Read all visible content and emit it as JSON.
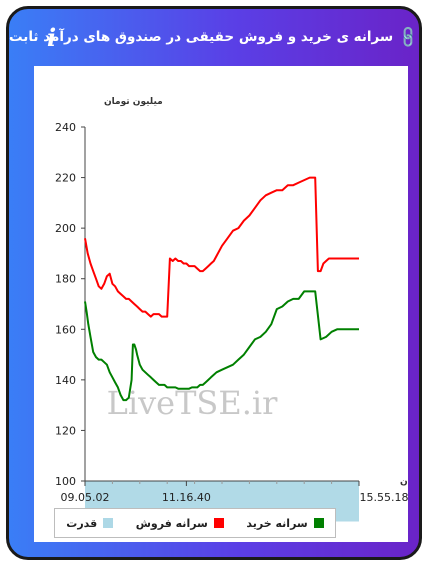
{
  "header": {
    "title": "سرانه ی خرید و فروش حقیقی در صندوق های درآمد ثابت",
    "link_icon": "link-icon",
    "info_icon": "info-icon",
    "info_glyph": "i"
  },
  "watermark": "LiveTSE.ir",
  "chart_data": {
    "type": "line",
    "ylabel": "میلیون تومان",
    "xlabel": "زمان",
    "ylim": [
      100,
      240
    ],
    "yticks": [
      100,
      120,
      140,
      160,
      180,
      200,
      220,
      240
    ],
    "xtick_labels": [
      "09.05.02",
      "11.16.40",
      "15.55.18"
    ],
    "grid": false,
    "legend_position": "bottom",
    "series": [
      {
        "name": "سرانه خرید",
        "color": "#008000",
        "x": [
          0,
          0.6,
          1.2,
          2,
          3,
          4,
          5,
          6,
          7,
          8,
          9,
          10,
          11,
          12,
          13,
          14,
          15,
          16,
          17,
          17.5,
          18,
          18.6,
          19,
          20,
          21,
          22,
          23,
          24,
          25,
          26,
          27,
          28,
          29,
          30,
          31,
          32,
          33,
          34,
          35,
          36,
          37,
          38,
          39,
          40,
          41,
          42,
          43,
          44,
          45,
          46,
          47,
          48,
          50,
          52,
          54,
          56,
          58,
          60,
          62,
          64,
          66,
          68,
          70,
          72,
          74,
          76,
          78,
          80,
          82,
          84,
          86,
          88,
          90,
          92,
          94,
          96,
          98,
          99,
          99.5,
          100
        ],
        "y": [
          171,
          167,
          162,
          157,
          151,
          149,
          148,
          148,
          147,
          146,
          143,
          141,
          139,
          137,
          134,
          132,
          132,
          133,
          140,
          154,
          154,
          152,
          150,
          146,
          144,
          143,
          142,
          141,
          140,
          139,
          138,
          138,
          138,
          137,
          137,
          137,
          137,
          136.5,
          136.5,
          136.5,
          136.5,
          136.5,
          137,
          137,
          137,
          138,
          138,
          139,
          140,
          141,
          142,
          143,
          144,
          145,
          146,
          148,
          150,
          153,
          156,
          157,
          159,
          162,
          168,
          169,
          171,
          172,
          172,
          175,
          175,
          175,
          156,
          157,
          159,
          160,
          160,
          160,
          160,
          160,
          160,
          160
        ]
      },
      {
        "name": "سرانه فروش",
        "color": "#ff0000",
        "x": [
          0,
          1,
          2,
          3,
          4,
          5,
          6,
          7,
          8,
          9,
          10,
          11,
          12,
          13,
          14,
          15,
          16,
          17,
          18,
          19,
          20,
          21,
          22,
          23,
          24,
          25,
          26,
          27,
          28,
          29,
          30,
          31,
          32,
          33,
          34,
          35,
          36,
          37,
          38,
          39,
          40,
          41,
          42,
          43,
          44,
          45,
          46,
          47,
          48,
          50,
          52,
          54,
          56,
          58,
          60,
          62,
          64,
          66,
          68,
          70,
          72,
          74,
          76,
          78,
          80,
          82,
          84,
          85,
          86,
          87,
          88,
          89,
          90,
          92,
          94,
          96,
          98,
          100
        ],
        "y": [
          196,
          190,
          186,
          183,
          180,
          177,
          176,
          178,
          181,
          182,
          178,
          177,
          175,
          174,
          173,
          172,
          172,
          171,
          170,
          169,
          168,
          167,
          167,
          166,
          165,
          166,
          166,
          166,
          165,
          165,
          165,
          188,
          187,
          188,
          187,
          187,
          186,
          186,
          185,
          185,
          185,
          184,
          183,
          183,
          184,
          185,
          186,
          187,
          189,
          193,
          196,
          199,
          200,
          203,
          205,
          208,
          211,
          213,
          214,
          215,
          215,
          217,
          217,
          218,
          219,
          220,
          220,
          183,
          183,
          186,
          187,
          188,
          188,
          188,
          188,
          188,
          188,
          188
        ]
      },
      {
        "name": "قدرت",
        "color": "#add8e6",
        "type": "area",
        "x": [
          0,
          5,
          10,
          15,
          16,
          20,
          25,
          30,
          35,
          40,
          45,
          50,
          55,
          60,
          65,
          70,
          75,
          80,
          85,
          90,
          95,
          100
        ],
        "y": [
          83,
          82.5,
          82.5,
          82.5,
          84,
          83.5,
          82.5,
          82,
          82,
          82,
          83,
          83,
          83,
          83,
          83,
          83.5,
          83.5,
          83.5,
          83.5,
          84,
          84,
          84
        ]
      }
    ]
  }
}
